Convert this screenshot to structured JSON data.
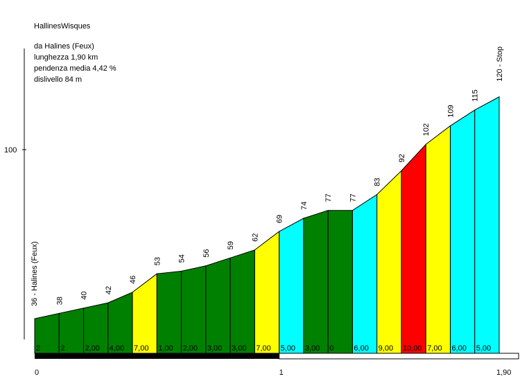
{
  "header": {
    "title": "HallinesWisques",
    "start": "da Halines (Feux)",
    "length": "lunghezza 1,90 km",
    "avg_grade": "pendenza media 4,42 %",
    "elevation_gain": "dislivello 84 m"
  },
  "colors": {
    "dark_green": "#008000",
    "yellow": "#ffff00",
    "cyan": "#00ffff",
    "red": "#ff0000",
    "distance_bar": "#000000"
  },
  "chart_data": {
    "type": "area",
    "title": "HallinesWisques",
    "xlabel": "",
    "ylabel": "",
    "xlim": [
      0,
      1.9
    ],
    "ylim": [
      25,
      140
    ],
    "x_tick_labels": [
      "0",
      "1",
      "1,90"
    ],
    "x_ticks": [
      0,
      1,
      1.9
    ],
    "y_tick_labels": [
      "100"
    ],
    "y_ticks": [
      100
    ],
    "start_label": "36 - Halines (Feux)",
    "end_label": "120 - Stop",
    "x": [
      0,
      0.1,
      0.2,
      0.3,
      0.4,
      0.5,
      0.6,
      0.7,
      0.8,
      0.9,
      1.0,
      1.1,
      1.2,
      1.3,
      1.4,
      1.5,
      1.6,
      1.7,
      1.8,
      1.9
    ],
    "elevation": [
      36,
      38,
      40,
      42,
      46,
      53,
      54,
      56,
      59,
      62,
      69,
      74,
      77,
      77,
      83,
      92,
      102,
      109,
      115,
      120
    ],
    "point_labels": [
      "38",
      "40",
      "42",
      "46",
      "53",
      "54",
      "56",
      "59",
      "62",
      "69",
      "74",
      "77",
      "77",
      "83",
      "92",
      "102",
      "109",
      "115"
    ],
    "gradients": [
      "2",
      "2",
      "2,00",
      "4,00",
      "7,00",
      "1,00",
      "2,00",
      "3,00",
      "3,00",
      "7,00",
      "5,00",
      "3,00",
      "0",
      "6,00",
      "9,00",
      "10,00",
      "7,00",
      "6,00",
      "5,00"
    ],
    "segment_colors": [
      "dark_green",
      "dark_green",
      "dark_green",
      "dark_green",
      "yellow",
      "dark_green",
      "dark_green",
      "dark_green",
      "dark_green",
      "yellow",
      "cyan",
      "dark_green",
      "dark_green",
      "cyan",
      "yellow",
      "red",
      "yellow",
      "cyan",
      "cyan"
    ],
    "grid": false,
    "legend": "none"
  }
}
